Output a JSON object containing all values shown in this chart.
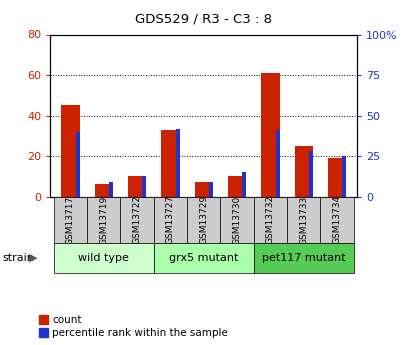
{
  "title": "GDS529 / R3 - C3 : 8",
  "samples": [
    "GSM13717",
    "GSM13719",
    "GSM13722",
    "GSM13727",
    "GSM13729",
    "GSM13730",
    "GSM13732",
    "GSM13733",
    "GSM13734"
  ],
  "counts": [
    45,
    6,
    10,
    33,
    7,
    10,
    61,
    25,
    19
  ],
  "percentile_ranks": [
    40,
    9,
    13,
    42,
    9,
    15,
    41,
    28,
    25
  ],
  "left_ylim": [
    0,
    80
  ],
  "right_ylim": [
    0,
    100
  ],
  "left_yticks": [
    0,
    20,
    40,
    60,
    80
  ],
  "right_yticks": [
    0,
    25,
    50,
    75,
    100
  ],
  "right_yticklabels": [
    "0",
    "25",
    "50",
    "75",
    "100%"
  ],
  "bar_color": "#cc2200",
  "percentile_color": "#2233cc",
  "groups": [
    {
      "label": "wild type",
      "start": 0,
      "end": 3,
      "color": "#ccffcc"
    },
    {
      "label": "grx5 mutant",
      "start": 3,
      "end": 6,
      "color": "#aaffaa"
    },
    {
      "label": "pet117 mutant",
      "start": 6,
      "end": 9,
      "color": "#55cc55"
    }
  ],
  "strain_label": "strain",
  "legend_count_label": "count",
  "legend_percentile_label": "percentile rank within the sample",
  "tick_bg_color": "#cccccc",
  "red_bar_width": 0.55,
  "blue_bar_width": 0.12
}
